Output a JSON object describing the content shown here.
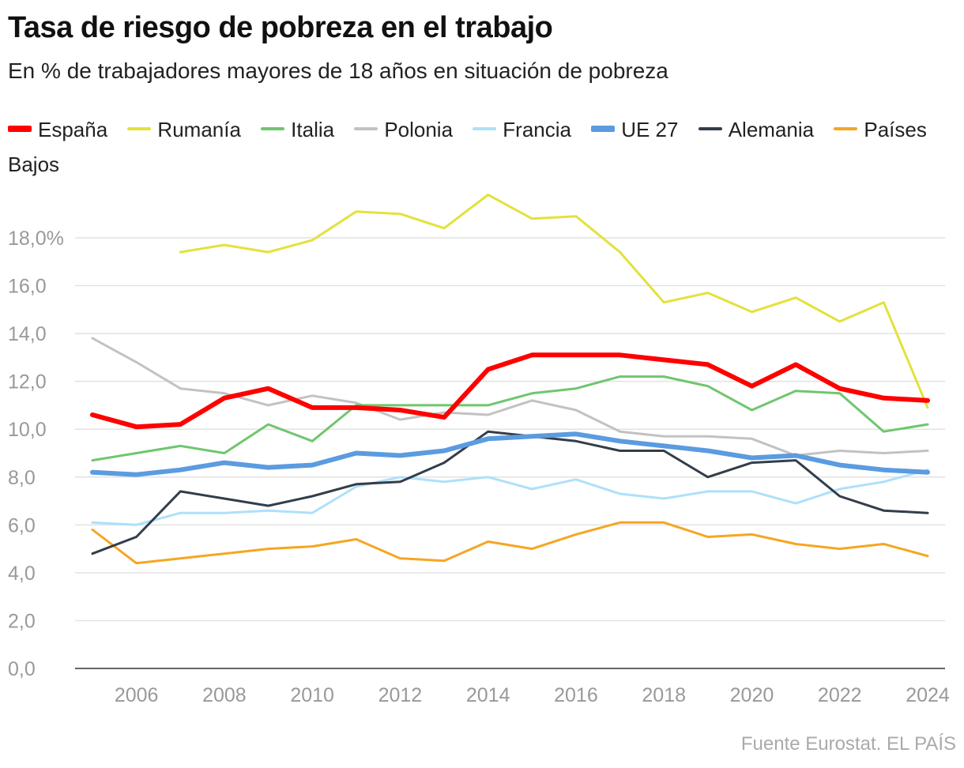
{
  "title": "Tasa de riesgo de pobreza en el trabajo",
  "subtitle": "En % de trabajadores mayores de 18 años en situación de pobreza",
  "source": "Fuente Eurostat. EL PAÍS",
  "chart_data": {
    "type": "line",
    "title": "Tasa de riesgo de pobreza en el trabajo",
    "subtitle": "En % de trabajadores mayores de 18 años en situación de pobreza",
    "x": [
      2005,
      2006,
      2007,
      2008,
      2009,
      2010,
      2011,
      2012,
      2013,
      2014,
      2015,
      2016,
      2017,
      2018,
      2019,
      2020,
      2021,
      2022,
      2023,
      2024
    ],
    "ylim": [
      0,
      19.5
    ],
    "yticks": [
      0,
      2,
      4,
      6,
      8,
      10,
      12,
      14,
      16,
      18
    ],
    "ytick_labels": [
      "0,0",
      "2,0",
      "4,0",
      "6,0",
      "8,0",
      "10,0",
      "12,0",
      "14,0",
      "16,0",
      "18,0%"
    ],
    "xticks": [
      2006,
      2008,
      2010,
      2012,
      2014,
      2016,
      2018,
      2020,
      2022,
      2024
    ],
    "xtick_labels": [
      "2006",
      "2008",
      "2010",
      "2012",
      "2014",
      "2016",
      "2018",
      "2020",
      "2022",
      "2024"
    ],
    "grid": true,
    "legend_placement": "top",
    "series": [
      {
        "name": "España",
        "color": "#ff0000",
        "width": 6,
        "values": [
          10.6,
          10.1,
          10.2,
          11.3,
          11.7,
          10.9,
          10.9,
          10.8,
          10.5,
          12.5,
          13.1,
          13.1,
          13.1,
          12.9,
          12.7,
          11.8,
          12.7,
          11.7,
          11.3,
          11.2
        ]
      },
      {
        "name": "Rumanía",
        "color": "#e2e23c",
        "width": 3,
        "values": [
          null,
          null,
          17.4,
          17.7,
          17.4,
          17.9,
          19.1,
          19.0,
          18.4,
          19.8,
          18.8,
          18.9,
          17.4,
          15.3,
          15.7,
          14.9,
          15.5,
          14.5,
          15.3,
          10.9
        ]
      },
      {
        "name": "Italia",
        "color": "#6fc66f",
        "width": 3,
        "values": [
          8.7,
          9.0,
          9.3,
          9.0,
          10.2,
          9.5,
          11.0,
          11.0,
          11.0,
          11.0,
          11.5,
          11.7,
          12.2,
          12.2,
          11.8,
          10.8,
          11.6,
          11.5,
          9.9,
          10.2
        ]
      },
      {
        "name": "Polonia",
        "color": "#c2c2c2",
        "width": 3,
        "values": [
          13.8,
          12.8,
          11.7,
          11.5,
          11.0,
          11.4,
          11.1,
          10.4,
          10.7,
          10.6,
          11.2,
          10.8,
          9.9,
          9.7,
          9.7,
          9.6,
          8.9,
          9.1,
          9.0,
          9.1
        ]
      },
      {
        "name": "Francia",
        "color": "#aee0fa",
        "width": 3,
        "values": [
          6.1,
          6.0,
          6.5,
          6.5,
          6.6,
          6.5,
          7.6,
          8.0,
          7.8,
          8.0,
          7.5,
          7.9,
          7.3,
          7.1,
          7.4,
          7.4,
          6.9,
          7.5,
          7.8,
          8.3
        ]
      },
      {
        "name": "UE 27",
        "color": "#5b9be0",
        "width": 6,
        "values": [
          8.2,
          8.1,
          8.3,
          8.6,
          8.4,
          8.5,
          9.0,
          8.9,
          9.1,
          9.6,
          9.7,
          9.8,
          9.5,
          9.3,
          9.1,
          8.8,
          8.9,
          8.5,
          8.3,
          8.2
        ]
      },
      {
        "name": "Alemania",
        "color": "#333d4b",
        "width": 3,
        "values": [
          4.8,
          5.5,
          7.4,
          7.1,
          6.8,
          7.2,
          7.7,
          7.8,
          8.6,
          9.9,
          9.7,
          9.5,
          9.1,
          9.1,
          8.0,
          8.6,
          8.7,
          7.2,
          6.6,
          6.5
        ]
      },
      {
        "name": "Países Bajos",
        "color": "#f5a623",
        "width": 3,
        "values": [
          5.8,
          4.4,
          4.6,
          4.8,
          5.0,
          5.1,
          5.4,
          4.6,
          4.5,
          5.3,
          5.0,
          5.6,
          6.1,
          6.1,
          5.5,
          5.6,
          5.2,
          5.0,
          5.2,
          4.7
        ]
      }
    ]
  }
}
